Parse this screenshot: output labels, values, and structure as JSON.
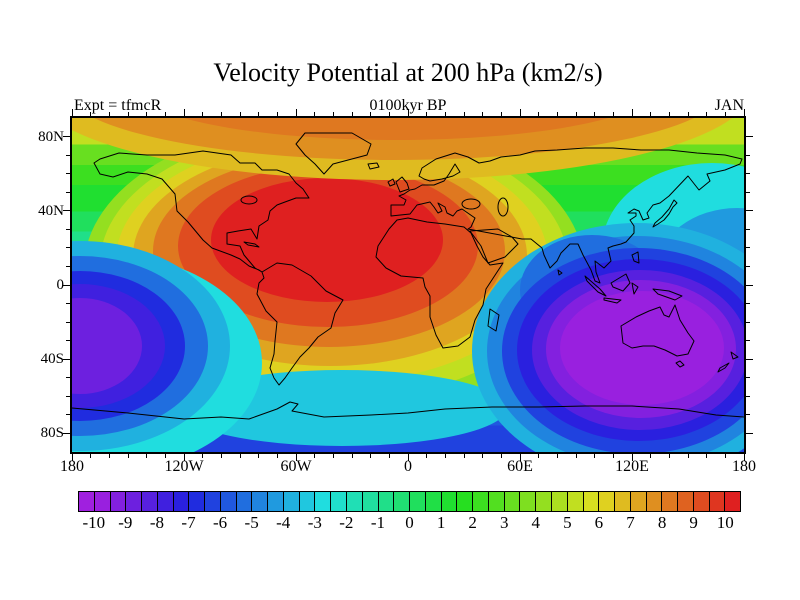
{
  "header": {
    "title": "Velocity Potential at 200 hPa (km2/s)",
    "subtitle": "0100kyr BP",
    "experiment_label": "Expt = tfmcR",
    "month_label": "JAN"
  },
  "chart_data": {
    "type": "heatmap",
    "title": "Velocity Potential at 200 hPa (km2/s)",
    "subtitle": "0100kyr BP",
    "experiment": "tfmcR",
    "month": "JAN",
    "units": "km2/s",
    "projection": "global equirectangular map, contour-filled field with coastlines",
    "contour_interval": 0.5,
    "x_axis": {
      "range_deg": [
        -180,
        180
      ],
      "tick_labels": [
        "180",
        "120W",
        "60W",
        "0",
        "60E",
        "120E",
        "180"
      ],
      "tick_lons": [
        -180,
        -120,
        -60,
        0,
        60,
        120,
        180
      ],
      "minor_tick_step_deg": 10
    },
    "y_axis": {
      "range_deg": [
        -90,
        90
      ],
      "tick_labels": [
        "80N",
        "40N",
        "0",
        "40S",
        "80S"
      ],
      "tick_lats": [
        80,
        40,
        0,
        -40,
        -80
      ],
      "minor_tick_step_deg": 10
    },
    "colorbar": {
      "orientation": "horizontal",
      "value_min": -10.5,
      "value_max": 10.5,
      "cell_step": 0.5,
      "tick_values": [
        -10,
        -9,
        -8,
        -7,
        -6,
        -5,
        -4,
        -3,
        -2,
        -1,
        0,
        1,
        2,
        3,
        4,
        5,
        6,
        7,
        8,
        9,
        10
      ],
      "tick_labels": [
        "-10",
        "-9",
        "-8",
        "-7",
        "-6",
        "-5",
        "-4",
        "-3",
        "-2",
        "-1",
        "0",
        "1",
        "2",
        "3",
        "4",
        "5",
        "6",
        "7",
        "8",
        "9",
        "10"
      ],
      "cell_colors": [
        "#a020df",
        "#9920df",
        "#8320df",
        "#6d20df",
        "#5720df",
        "#4020df",
        "#2a20df",
        "#202cdf",
        "#2042df",
        "#2058df",
        "#206edf",
        "#2084df",
        "#209adf",
        "#20b1df",
        "#20c7df",
        "#20dddf",
        "#20dfcb",
        "#20dfb5",
        "#20df9f",
        "#20df89",
        "#20df73",
        "#20df5d",
        "#20df46",
        "#20df30",
        "#26df20",
        "#3cdf20",
        "#52df20",
        "#68df20",
        "#7edf20",
        "#94df20",
        "#abdf20",
        "#c1df20",
        "#d7df20",
        "#dfd120",
        "#dfbb20",
        "#dfa520",
        "#df8f20",
        "#df7820",
        "#df6220",
        "#df4c20",
        "#df3620",
        "#df2020"
      ]
    },
    "features": [
      {
        "name": "positive-center",
        "approx_lon": -20,
        "approx_lat": 27,
        "approx_value": 10,
        "description": "broad maximum over North Atlantic, Europe, North Africa and eastern North America"
      },
      {
        "name": "negative-center-indian-west-pacific",
        "approx_lon": 110,
        "approx_lat": -25,
        "approx_value": -10,
        "description": "broad minimum over Indian Ocean, Australia and western Pacific"
      },
      {
        "name": "negative-center-southeast-pacific",
        "approx_lon": -175,
        "approx_lat": -30,
        "approx_value": -8,
        "description": "secondary minimum near the dateline in the southeast Pacific"
      },
      {
        "name": "arctic-band",
        "approx_value": 6,
        "description": "orange positive band over the Arctic"
      },
      {
        "name": "antarctic-band",
        "approx_value": -5,
        "description": "blue negative band around Antarctica"
      }
    ],
    "approx_field": {
      "lons": [
        -180,
        -150,
        -120,
        -90,
        -60,
        -30,
        0,
        30,
        60,
        90,
        120,
        150,
        180
      ],
      "lats": [
        80,
        60,
        40,
        20,
        0,
        -20,
        -40,
        -60,
        -80
      ],
      "values": [
        [
          4,
          5,
          6,
          7,
          7,
          8,
          8,
          7,
          6,
          5,
          5,
          4,
          4
        ],
        [
          3,
          4,
          6,
          8,
          9,
          9,
          9,
          8,
          6,
          4,
          2,
          1,
          3
        ],
        [
          0,
          2,
          4,
          7,
          9,
          10,
          10,
          9,
          5,
          1,
          -1,
          -1,
          0
        ],
        [
          -2,
          0,
          2,
          6,
          9,
          10,
          10,
          8,
          2,
          -4,
          -6,
          -4,
          -2
        ],
        [
          -5,
          -3,
          -1,
          3,
          6,
          8,
          7,
          3,
          -4,
          -8,
          -9,
          -8,
          -5
        ],
        [
          -7,
          -5,
          -3,
          0,
          3,
          4,
          3,
          -1,
          -7,
          -10,
          -10,
          -9,
          -7
        ],
        [
          -8,
          -6,
          -4,
          -2,
          0,
          1,
          0,
          -2,
          -6,
          -9,
          -10,
          -9,
          -8
        ],
        [
          -6,
          -5,
          -4,
          -3,
          -2,
          -2,
          -3,
          -4,
          -6,
          -7,
          -8,
          -7,
          -6
        ],
        [
          -5,
          -5,
          -5,
          -4,
          -4,
          -4,
          -4,
          -5,
          -5,
          -6,
          -6,
          -6,
          -5
        ]
      ]
    }
  },
  "map_style": {
    "coastline_color": "#000000",
    "border_color": "#000000",
    "background": "#ffffff"
  }
}
